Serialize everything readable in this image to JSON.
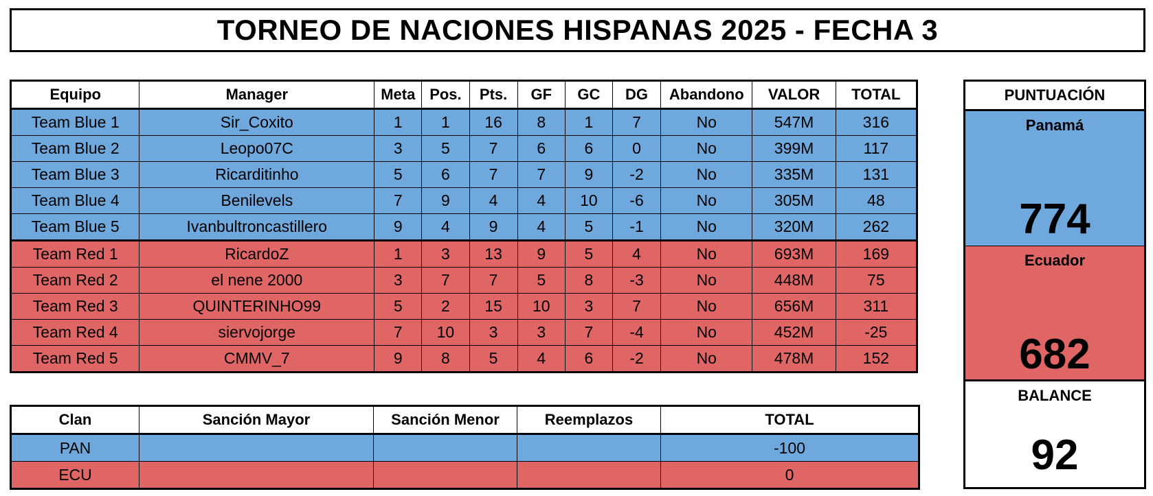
{
  "title": "TORNEO DE NACIONES HISPANAS 2025 - FECHA 3",
  "main_table": {
    "headers": [
      "Equipo",
      "Manager",
      "Meta",
      "Pos.",
      "Pts.",
      "GF",
      "GC",
      "DG",
      "Abandono",
      "VALOR",
      "TOTAL"
    ],
    "rows": [
      [
        "Team Blue 1",
        "Sir_Coxito",
        "1",
        "1",
        "16",
        "8",
        "1",
        "7",
        "No",
        "547M",
        "316"
      ],
      [
        "Team Blue 2",
        "Leopo07C",
        "3",
        "5",
        "7",
        "6",
        "6",
        "0",
        "No",
        "399M",
        "117"
      ],
      [
        "Team Blue 3",
        "Ricarditinho",
        "5",
        "6",
        "7",
        "7",
        "9",
        "-2",
        "No",
        "335M",
        "131"
      ],
      [
        "Team Blue 4",
        "Benilevels",
        "7",
        "9",
        "4",
        "4",
        "10",
        "-6",
        "No",
        "305M",
        "48"
      ],
      [
        "Team Blue 5",
        "Ivanbultroncastillero",
        "9",
        "4",
        "9",
        "4",
        "5",
        "-1",
        "No",
        "320M",
        "262"
      ],
      [
        "Team Red 1",
        "RicardoZ",
        "1",
        "3",
        "13",
        "9",
        "5",
        "4",
        "No",
        "693M",
        "169"
      ],
      [
        "Team Red 2",
        "el nene 2000",
        "3",
        "7",
        "7",
        "5",
        "8",
        "-3",
        "No",
        "448M",
        "75"
      ],
      [
        "Team Red 3",
        "QUINTERINHO99",
        "5",
        "2",
        "15",
        "10",
        "3",
        "7",
        "No",
        "656M",
        "311"
      ],
      [
        "Team Red 4",
        "siervojorge",
        "7",
        "10",
        "3",
        "3",
        "7",
        "-4",
        "No",
        "452M",
        "-25"
      ],
      [
        "Team Red 5",
        "CMMV_7",
        "9",
        "8",
        "5",
        "4",
        "6",
        "-2",
        "No",
        "478M",
        "152"
      ]
    ]
  },
  "penalty_table": {
    "headers": [
      "Clan",
      "Sanción Mayor",
      "Sanción Menor",
      "Reemplazos",
      "TOTAL"
    ],
    "rows": [
      [
        "PAN",
        "",
        "",
        "",
        "-100"
      ],
      [
        "ECU",
        "",
        "",
        "",
        "0"
      ]
    ]
  },
  "score_panel": {
    "header": "PUNTUACIÓN",
    "team1_name": "Panamá",
    "team1_score": "774",
    "team2_name": "Ecuador",
    "team2_score": "682",
    "balance_label": "BALANCE",
    "balance_value": "92"
  },
  "colors": {
    "blue": "#6fa8dc",
    "red": "#e06666"
  }
}
